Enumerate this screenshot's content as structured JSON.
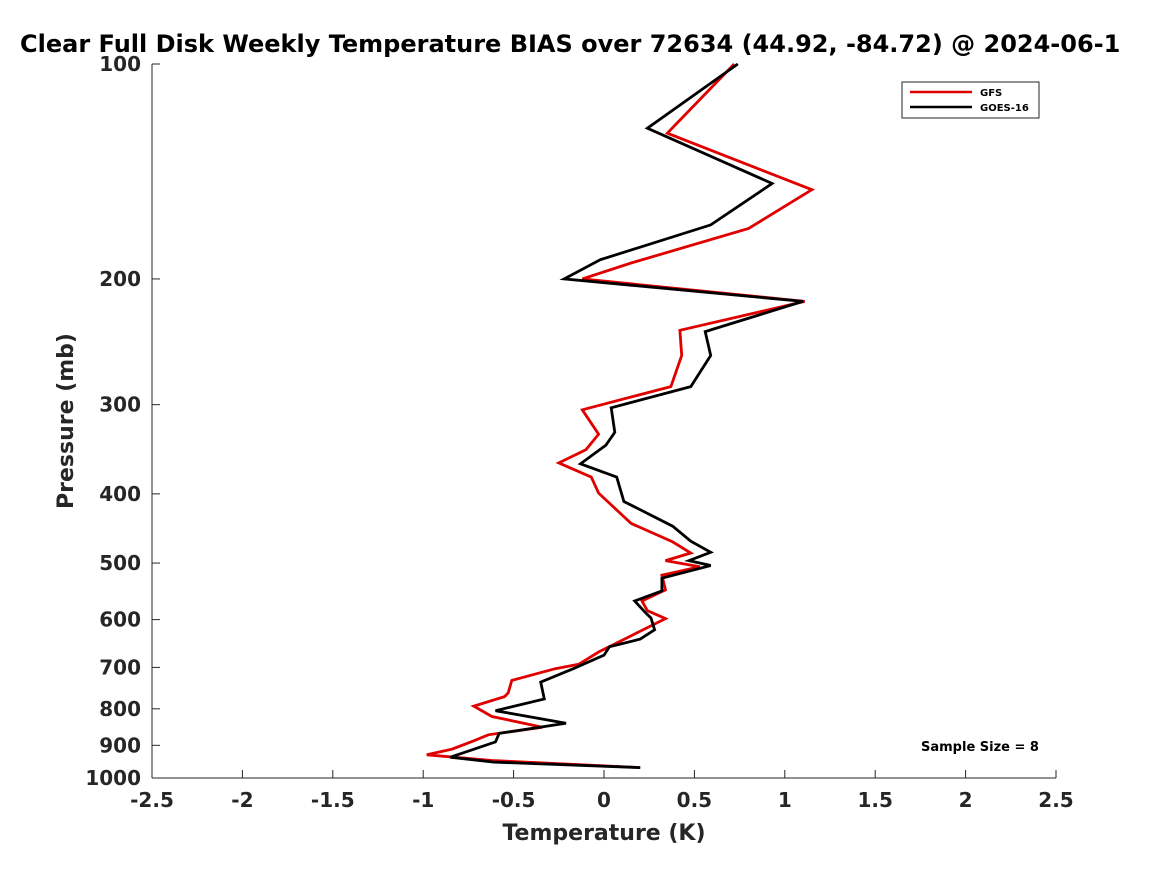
{
  "chart_data": {
    "type": "line",
    "title": "Clear Full Disk Weekly Temperature BIAS over 72634 (44.92, -84.72) @ 2024-06-1",
    "xlabel": "Temperature (K)",
    "ylabel": "Pressure (mb)",
    "xlim": [
      -2.5,
      2.5
    ],
    "ylim": [
      100,
      1000
    ],
    "yscale": "log",
    "y_reversed": true,
    "x_ticks": [
      -2.5,
      -2,
      -1.5,
      -1,
      -0.5,
      0,
      0.5,
      1,
      1.5,
      2,
      2.5
    ],
    "x_tick_labels": [
      "-2.5",
      "-2",
      "-1.5",
      "-1",
      "-0.5",
      "0",
      "0.5",
      "1",
      "1.5",
      "2",
      "2.5"
    ],
    "y_ticks": [
      100,
      200,
      300,
      400,
      500,
      600,
      700,
      800,
      900,
      1000
    ],
    "y_tick_labels": [
      "100",
      "200",
      "300",
      "400",
      "500",
      "600",
      "700",
      "800",
      "900",
      "1000"
    ],
    "grid": false,
    "legend_position": "top-right",
    "series": [
      {
        "name": "GFS",
        "color": "#e00000",
        "points": [
          [
            0.72,
            100
          ],
          [
            0.35,
            125
          ],
          [
            1.15,
            150
          ],
          [
            0.8,
            170
          ],
          [
            0.15,
            190
          ],
          [
            -0.12,
            200
          ],
          [
            1.11,
            215
          ],
          [
            0.42,
            236
          ],
          [
            0.43,
            256
          ],
          [
            0.37,
            283
          ],
          [
            -0.12,
            305
          ],
          [
            -0.03,
            330
          ],
          [
            -0.1,
            347
          ],
          [
            -0.25,
            362
          ],
          [
            -0.07,
            379
          ],
          [
            -0.03,
            399
          ],
          [
            0.15,
            440
          ],
          [
            0.38,
            467
          ],
          [
            0.48,
            484
          ],
          [
            0.34,
            496
          ],
          [
            0.53,
            506
          ],
          [
            0.32,
            520
          ],
          [
            0.34,
            545
          ],
          [
            0.21,
            565
          ],
          [
            0.24,
            583
          ],
          [
            0.34,
            598
          ],
          [
            0.14,
            634
          ],
          [
            -0.03,
            666
          ],
          [
            -0.14,
            693
          ],
          [
            -0.27,
            703
          ],
          [
            -0.51,
            730
          ],
          [
            -0.53,
            760
          ],
          [
            -0.55,
            769
          ],
          [
            -0.72,
            793
          ],
          [
            -0.62,
            820
          ],
          [
            -0.34,
            849
          ],
          [
            -0.64,
            870
          ],
          [
            -0.72,
            887
          ],
          [
            -0.84,
            911
          ],
          [
            -0.98,
            928
          ],
          [
            -0.62,
            945
          ],
          [
            0.2,
            967
          ]
        ]
      },
      {
        "name": "GOES-16",
        "color": "#000000",
        "points": [
          [
            0.74,
            100
          ],
          [
            0.24,
            123
          ],
          [
            0.93,
            147
          ],
          [
            0.59,
            168
          ],
          [
            -0.02,
            188
          ],
          [
            -0.22,
            200
          ],
          [
            1.1,
            215
          ],
          [
            0.56,
            237
          ],
          [
            0.59,
            256
          ],
          [
            0.48,
            283
          ],
          [
            0.04,
            303
          ],
          [
            0.06,
            328
          ],
          [
            0.01,
            342
          ],
          [
            -0.13,
            363
          ],
          [
            0.07,
            379
          ],
          [
            0.11,
            410
          ],
          [
            0.38,
            444
          ],
          [
            0.48,
            466
          ],
          [
            0.59,
            483
          ],
          [
            0.47,
            496
          ],
          [
            0.59,
            504
          ],
          [
            0.32,
            525
          ],
          [
            0.32,
            547
          ],
          [
            0.17,
            565
          ],
          [
            0.23,
            587
          ],
          [
            0.26,
            597
          ],
          [
            0.28,
            620
          ],
          [
            0.2,
            639
          ],
          [
            0.03,
            655
          ],
          [
            0.0,
            673
          ],
          [
            -0.17,
            703
          ],
          [
            -0.35,
            734
          ],
          [
            -0.33,
            775
          ],
          [
            -0.6,
            805
          ],
          [
            -0.21,
            838
          ],
          [
            -0.58,
            866
          ],
          [
            -0.6,
            890
          ],
          [
            -0.85,
            935
          ],
          [
            -0.61,
            950
          ],
          [
            0.2,
            967
          ]
        ]
      }
    ],
    "annotations": [
      "Sample Size = 8"
    ]
  }
}
